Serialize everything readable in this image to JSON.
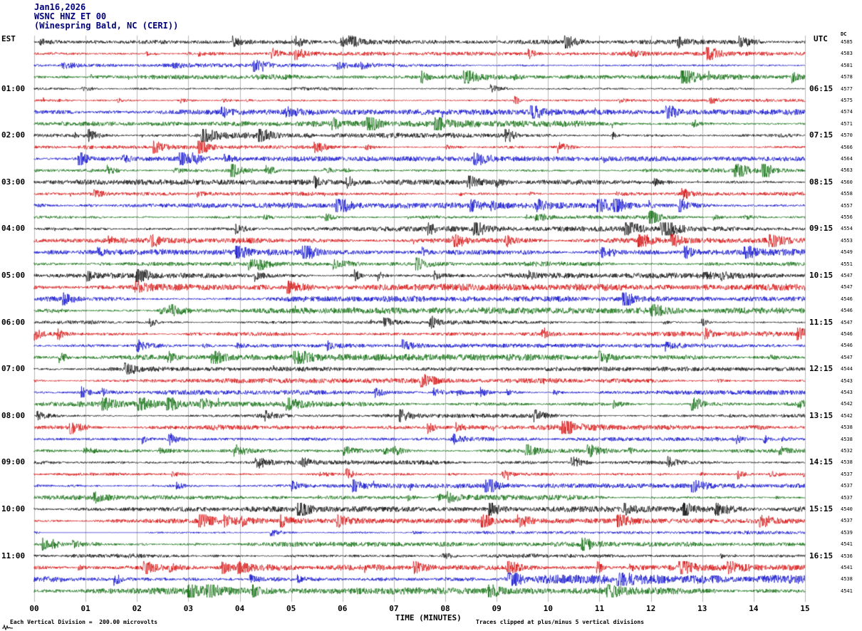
{
  "header": {
    "date": "Jan16,2026",
    "station": "WSNC HNZ ET 00",
    "location": "(Winespring Bald, NC (CERI))"
  },
  "left_axis": {
    "label": "EST",
    "hour_labels": [
      "01:00",
      "02:00",
      "03:00",
      "04:00",
      "05:00",
      "06:00",
      "07:00",
      "08:00",
      "09:00",
      "10:00",
      "11:00"
    ]
  },
  "right_axis": {
    "label": "UTC",
    "dc_label": "DC",
    "hour_labels": [
      "06:15",
      "07:15",
      "08:15",
      "09:15",
      "10:15",
      "11:15",
      "12:15",
      "13:15",
      "14:15",
      "15:15",
      "16:15"
    ],
    "dc_values": [
      4585,
      4583,
      4581,
      4578,
      4577,
      4575,
      4574,
      4571,
      4570,
      4566,
      4564,
      4563,
      4560,
      4558,
      4557,
      4556,
      4554,
      4553,
      4549,
      4551,
      4547,
      4547,
      4546,
      4546,
      4547,
      4546,
      4546,
      4547,
      4544,
      4543,
      4543,
      4542,
      4542,
      4538,
      4538,
      4532,
      4538,
      4537,
      4537,
      4537,
      4540,
      4537,
      4539,
      4541,
      4536,
      4541,
      4538,
      4541
    ]
  },
  "x_axis": {
    "label": "TIME (MINUTES)",
    "tick_labels": [
      "00",
      "01",
      "02",
      "03",
      "04",
      "05",
      "06",
      "07",
      "08",
      "09",
      "10",
      "11",
      "12",
      "13",
      "14",
      "15"
    ]
  },
  "footer": {
    "scale_note": "Each Vertical Division =  200.00 microvolts",
    "clip_note": "Traces clipped at plus/minus 5 vertical divisions"
  },
  "chart_data": {
    "type": "line",
    "subtype": "helicorder-seismogram",
    "title": "WSNC HNZ ET 00 (Winespring Bald, NC (CERI)) Jan16,2026",
    "rows": 48,
    "row_duration_minutes": 15,
    "start_time_est": "00:00",
    "hours_per_label": 1,
    "traces_per_hour": 4,
    "trace_colors": [
      "#000000",
      "#d40000",
      "#0000cc",
      "#006600"
    ],
    "grid_color": "#8a8a8a",
    "xlim_minutes": [
      0,
      15
    ],
    "xlabel": "TIME (MINUTES)",
    "microvolts_per_division": 200.0,
    "clip_divisions": 5,
    "utc_offset_note": "EST rows labeled hourly; UTC end-times on right",
    "noise_seed": 20260116,
    "row_amp_overrides": {
      "18": 1.5,
      "21": 1.6,
      "33": 1.4,
      "45": 1.4,
      "46": 2.1,
      "47": 1.6
    },
    "quiet_segments": [
      {
        "row": 42,
        "from_minute": 0.15,
        "to_minute": 2.15
      }
    ]
  }
}
